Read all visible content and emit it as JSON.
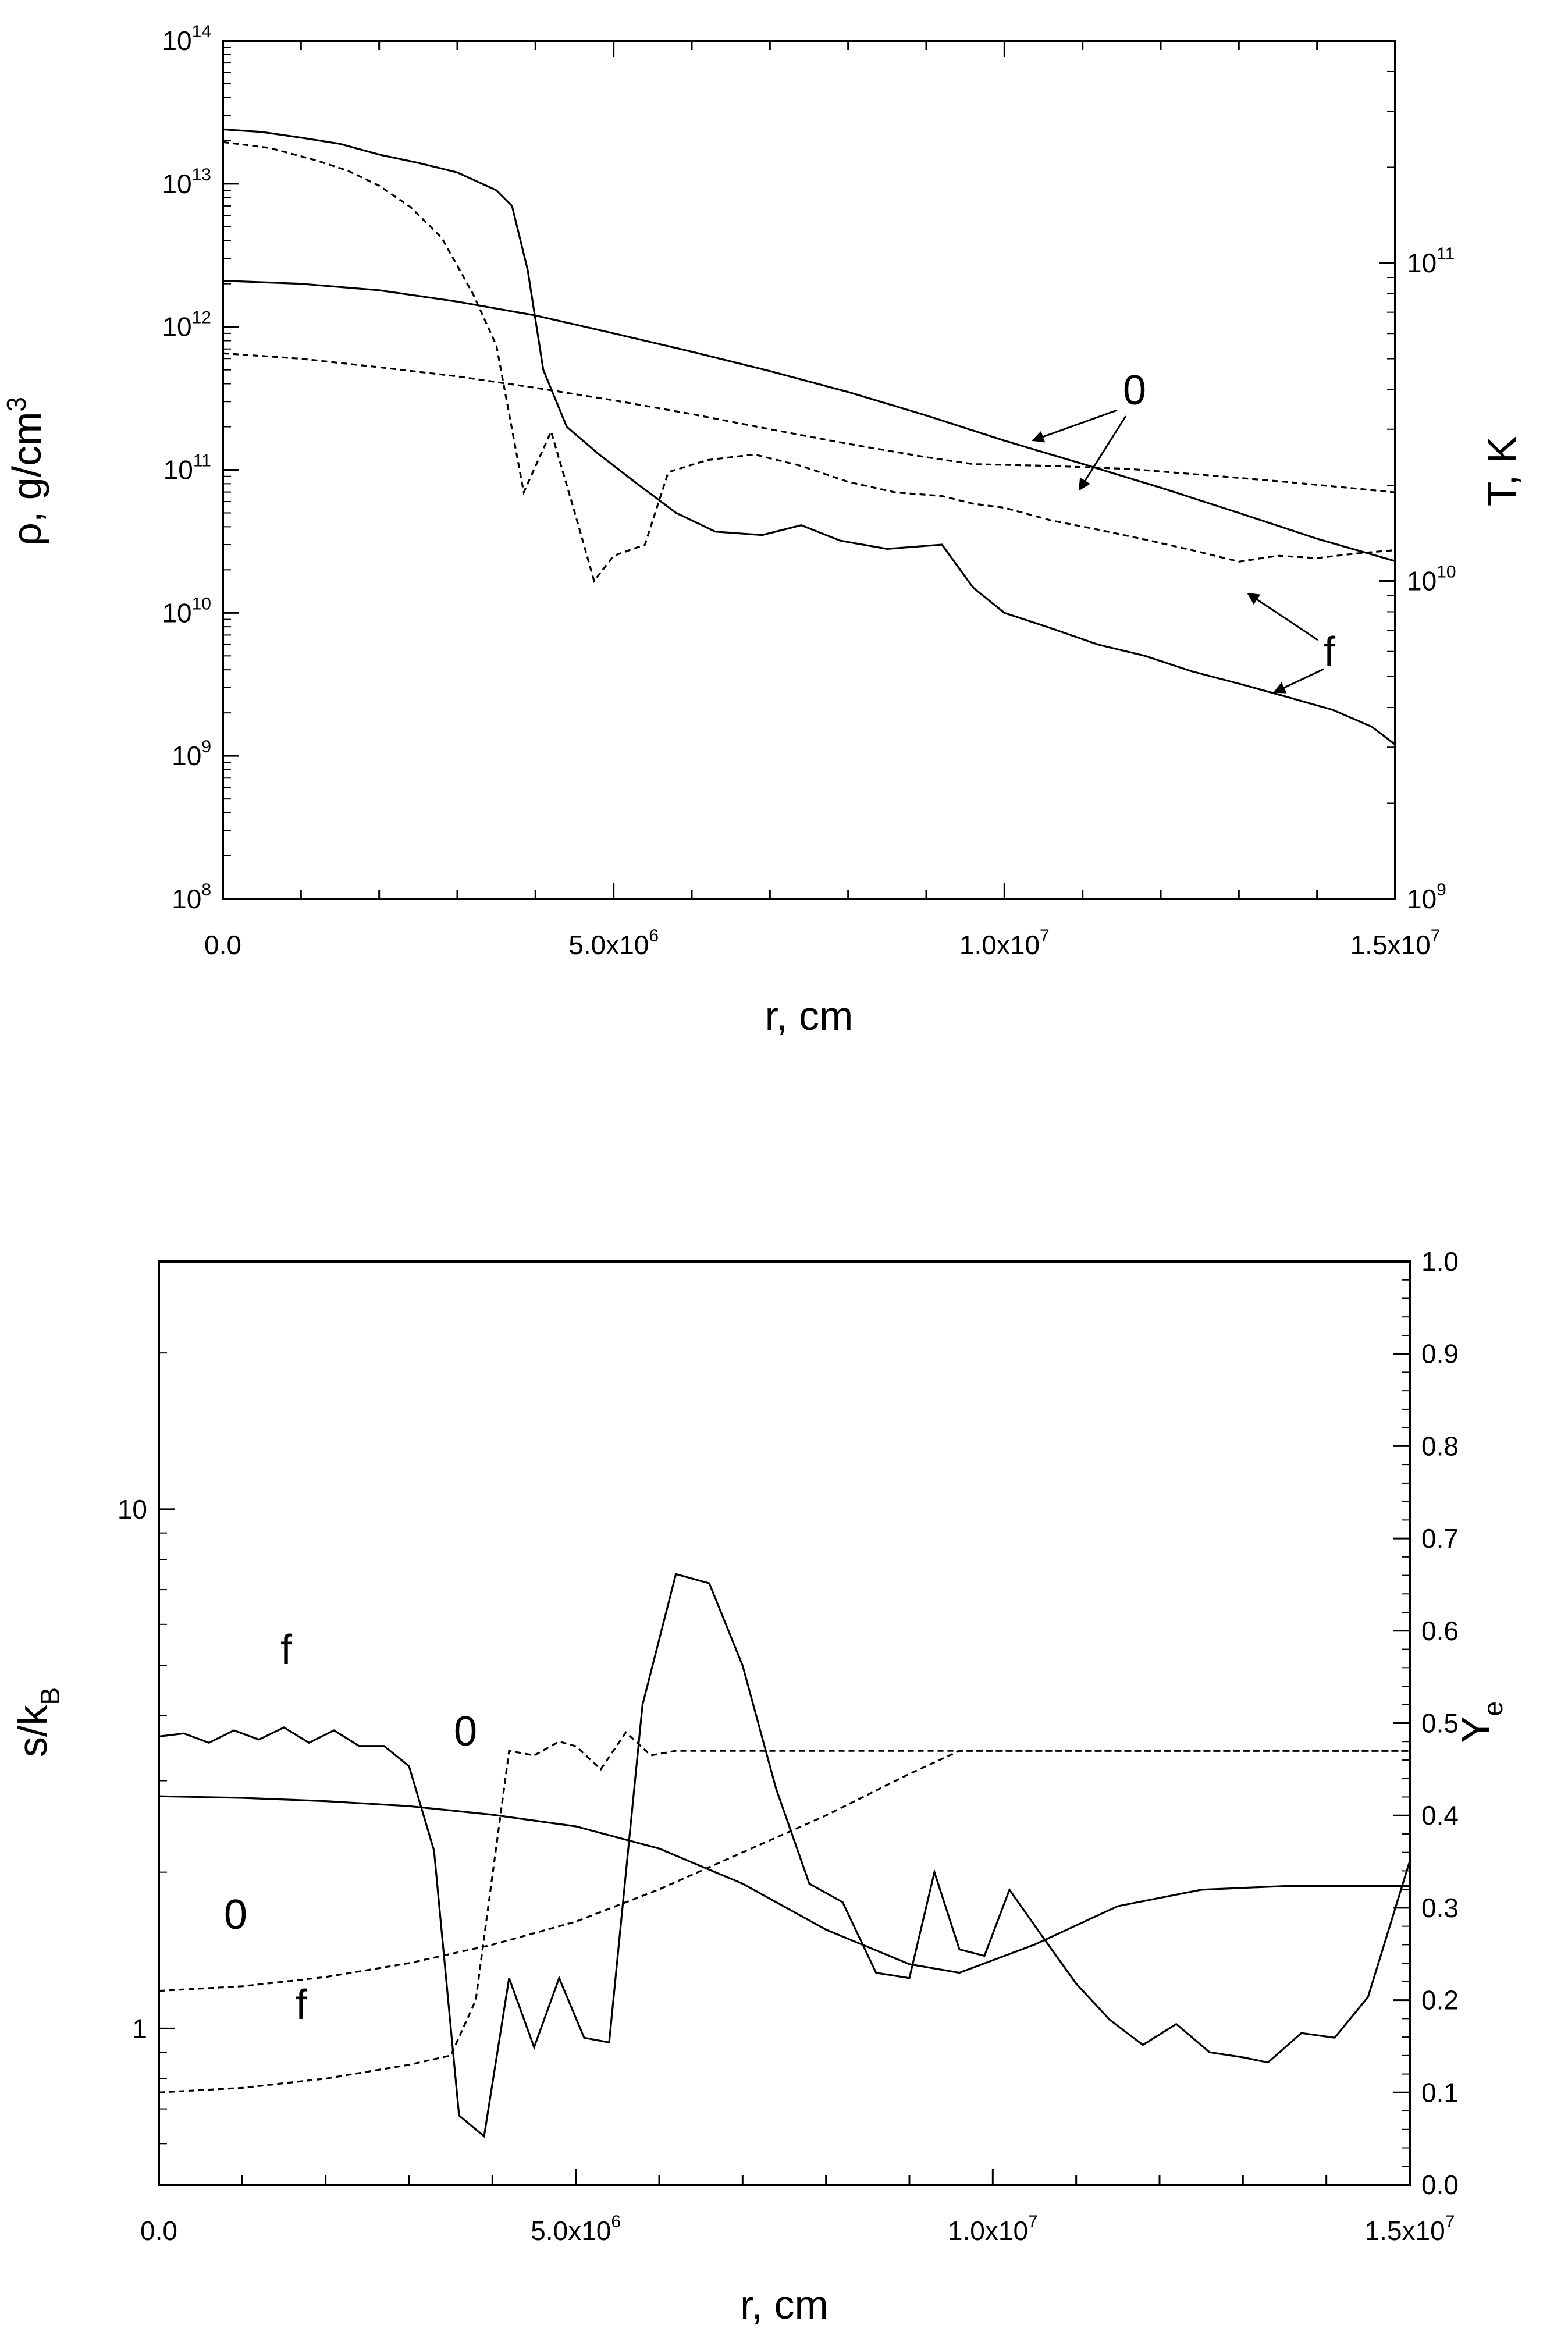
{
  "chart_data": [
    {
      "type": "line",
      "panel": "top",
      "xlabel": "r, cm",
      "ylabel_left": "ρ, g/cm3",
      "ylabel_right": "T, K",
      "xlim": [
        0,
        15000000
      ],
      "ylim_left": [
        100000000,
        100000000000000
      ],
      "ylim_right": [
        1000000000,
        500000000000
      ],
      "yscale": "log",
      "x_ticks": [
        {
          "value": 0,
          "mantissa": "0.0",
          "exp": ""
        },
        {
          "value": 5000000,
          "mantissa": "5.0x10",
          "exp": "6"
        },
        {
          "value": 10000000,
          "mantissa": "1.0x10",
          "exp": "7"
        },
        {
          "value": 15000000,
          "mantissa": "1.5x10",
          "exp": "7"
        }
      ],
      "y_left_ticks": [
        {
          "value": 100000000,
          "base": "10",
          "exp": "8"
        },
        {
          "value": 1000000000,
          "base": "10",
          "exp": "9"
        },
        {
          "value": 10000000000,
          "base": "10",
          "exp": "10"
        },
        {
          "value": 100000000000,
          "base": "10",
          "exp": "11"
        },
        {
          "value": 1000000000000,
          "base": "10",
          "exp": "12"
        },
        {
          "value": 10000000000000,
          "base": "10",
          "exp": "13"
        },
        {
          "value": 100000000000000,
          "base": "10",
          "exp": "14"
        }
      ],
      "y_right_ticks": [
        {
          "value": 1000000000,
          "base": "10",
          "exp": "9"
        },
        {
          "value": 10000000000,
          "base": "10",
          "exp": "10"
        },
        {
          "value": 100000000000,
          "base": "10",
          "exp": "11"
        }
      ],
      "series": [
        {
          "name": "rho_f",
          "axis": "left",
          "style": "solid",
          "x": [
            0,
            500000.0,
            1000000.0,
            1500000.0,
            2000000.0,
            2500000.0,
            3000000.0,
            3500000.0,
            3700000.0,
            3900000.0,
            4100000.0,
            4400000.0,
            4800000.0,
            5300000.0,
            5800000.0,
            6300000.0,
            6900000.0,
            7400000.0,
            7900000.0,
            8500000.0,
            9200000.0,
            9600000.0,
            10000000.0,
            10600000.0,
            11200000.0,
            11800000.0,
            12400000.0,
            13000000.0,
            13600000.0,
            14200000.0,
            14700000.0,
            15000000.0
          ],
          "y": [
            24000000000000.0,
            23000000000000.0,
            21000000000000.0,
            19000000000000.0,
            16000000000000.0,
            14000000000000.0,
            12000000000000.0,
            9000000000000.0,
            7000000000000.0,
            2500000000000.0,
            500000000000.0,
            200000000000.0,
            130000000000.0,
            80000000000.0,
            50000000000.0,
            37000000000.0,
            35000000000.0,
            41000000000.0,
            32000000000.0,
            28000000000.0,
            30000000000.0,
            15000000000.0,
            10000000000.0,
            7800000000.0,
            6000000000.0,
            5000000000.0,
            3900000000.0,
            3200000000.0,
            2600000000.0,
            2100000000.0,
            1600000000.0,
            1200000000.0
          ]
        },
        {
          "name": "rho_0",
          "axis": "left",
          "style": "solid",
          "x": [
            0,
            1000000.0,
            2000000.0,
            3000000.0,
            4000000.0,
            5000000.0,
            6000000.0,
            7000000.0,
            8000000.0,
            9000000.0,
            10000000.0,
            11000000.0,
            12000000.0,
            13000000.0,
            14000000.0,
            15000000.0
          ],
          "y": [
            2100000000000.0,
            2000000000000.0,
            1800000000000.0,
            1500000000000.0,
            1200000000000.0,
            900000000000.0,
            670000000000.0,
            490000000000.0,
            350000000000.0,
            240000000000.0,
            160000000000.0,
            110000000000.0,
            75000000000.0,
            50000000000.0,
            33000000000.0,
            23000000000.0
          ]
        },
        {
          "name": "T_f",
          "axis": "right",
          "style": "dashed",
          "x": [
            0,
            600000.0,
            1200000.0,
            1600000.0,
            2000000.0,
            2400000.0,
            2800000.0,
            3200000.0,
            3500000.0,
            3850000.0,
            4200000.0,
            4500000.0,
            4750000.0,
            5000000.0,
            5400000.0,
            5700000.0,
            6200000.0,
            6800000.0,
            7400000.0,
            8000000.0,
            8600000.0,
            9200000.0,
            9600000.0,
            10000000.0,
            10600000.0,
            11200000.0,
            11800000.0,
            12400000.0,
            13000000.0,
            13500000.0,
            14000000.0,
            14500000.0,
            15000000.0
          ],
          "y": [
            240000000000.0,
            230000000000.0,
            210000000000.0,
            195000000000.0,
            175000000000.0,
            150000000000.0,
            120000000000.0,
            80000000000.0,
            55000000000.0,
            19000000000.0,
            29500000000.0,
            16500000000.0,
            10000000000.0,
            12000000000.0,
            13000000000.0,
            22000000000.0,
            24000000000.0,
            25000000000.0,
            23000000000.0,
            20500000000.0,
            19000000000.0,
            18500000000.0,
            17500000000.0,
            17000000000.0,
            15500000000.0,
            14500000000.0,
            13500000000.0,
            12500000000.0,
            11500000000.0,
            12000000000.0,
            11800000000.0,
            12200000000.0,
            12500000000.0
          ]
        },
        {
          "name": "T_0",
          "axis": "right",
          "style": "dashed",
          "x": [
            0,
            1000000.0,
            2000000.0,
            3000000.0,
            4000000.0,
            5000000.0,
            6000000.0,
            7000000.0,
            8000000.0,
            9000000.0,
            9600000.0,
            10600000.0,
            11600000.0,
            12600000.0,
            13600000.0,
            15000000.0
          ],
          "y": [
            52000000000.0,
            50000000000.0,
            47000000000.0,
            44000000000.0,
            40500000000.0,
            37000000000.0,
            33500000000.0,
            30000000000.0,
            27000000000.0,
            24500000000.0,
            23300000000.0,
            23000000000.0,
            22500000000.0,
            21500000000.0,
            20500000000.0,
            19000000000.0
          ]
        }
      ],
      "annotations": [
        {
          "text": "0"
        },
        {
          "text": "f"
        }
      ]
    },
    {
      "type": "line",
      "panel": "bottom",
      "xlabel": "r, cm",
      "ylabel_left": "s/kB",
      "ylabel_right": "Ye",
      "xlim": [
        0,
        15000000
      ],
      "ylim_left": [
        0.5,
        30
      ],
      "ylim_right": [
        0.0,
        1.0
      ],
      "yscale_left": "log",
      "x_ticks": [
        {
          "value": 0,
          "mantissa": "0.0",
          "exp": ""
        },
        {
          "value": 5000000,
          "mantissa": "5.0x10",
          "exp": "6"
        },
        {
          "value": 10000000,
          "mantissa": "1.0x10",
          "exp": "7"
        },
        {
          "value": 15000000,
          "mantissa": "1.5x10",
          "exp": "7"
        }
      ],
      "y_left_ticks": [
        "1",
        "10"
      ],
      "y_right_ticks": [
        "0.0",
        "0.1",
        "0.2",
        "0.3",
        "0.4",
        "0.5",
        "0.6",
        "0.7",
        "0.8",
        "0.9",
        "1.0"
      ],
      "series": [
        {
          "name": "s_f",
          "axis": "left",
          "style": "solid",
          "x": [
            0,
            300000.0,
            600000.0,
            900000.0,
            1200000.0,
            1500000.0,
            1800000.0,
            2100000.0,
            2400000.0,
            2700000.0,
            3000000.0,
            3300000.0,
            3600000.0,
            3900000.0,
            4200000.0,
            4500000.0,
            4800000.0,
            5100000.0,
            5400000.0,
            5800000.0,
            6200000.0,
            6600000.0,
            7000000.0,
            7400000.0,
            7800000.0,
            8200000.0,
            8600000.0,
            9000000.0,
            9300000.0,
            9600000.0,
            9900000.0,
            10200000.0,
            10600000.0,
            11000000.0,
            11400000.0,
            11800000.0,
            12200000.0,
            12600000.0,
            13000000.0,
            13300000.0,
            13700000.0,
            14100000.0,
            14500000.0,
            15000000.0
          ],
          "y": [
            3.65,
            3.7,
            3.55,
            3.75,
            3.6,
            3.8,
            3.55,
            3.75,
            3.5,
            3.5,
            3.2,
            2.2,
            0.68,
            0.62,
            1.25,
            0.92,
            1.25,
            0.96,
            0.94,
            4.2,
            7.5,
            7.2,
            5.0,
            2.9,
            1.9,
            1.75,
            1.28,
            1.25,
            2.0,
            1.42,
            1.38,
            1.85,
            1.5,
            1.22,
            1.04,
            0.93,
            1.02,
            0.9,
            0.88,
            0.86,
            0.98,
            0.96,
            1.15,
            2.1
          ]
        },
        {
          "name": "s_0",
          "axis": "left",
          "style": "solid",
          "x": [
            0,
            1000000.0,
            2000000.0,
            3000000.0,
            4000000.0,
            5000000.0,
            6000000.0,
            7000000.0,
            8000000.0,
            9000000.0,
            9600000.0,
            10500000.0,
            11500000.0,
            12500000.0,
            13500000.0,
            15000000.0
          ],
          "y": [
            2.8,
            2.78,
            2.74,
            2.68,
            2.58,
            2.45,
            2.22,
            1.9,
            1.55,
            1.33,
            1.28,
            1.45,
            1.72,
            1.85,
            1.88,
            1.88
          ]
        },
        {
          "name": "Ye_0",
          "axis": "right",
          "style": "dashed",
          "x": [
            0,
            1000000.0,
            2000000.0,
            3000000.0,
            4000000.0,
            5000000.0,
            6000000.0,
            7000000.0,
            8000000.0,
            9000000.0,
            9600000.0,
            10500000.0,
            12000000.0,
            15000000.0
          ],
          "y": [
            0.21,
            0.215,
            0.225,
            0.24,
            0.26,
            0.285,
            0.32,
            0.36,
            0.4,
            0.445,
            0.47,
            0.47,
            0.47,
            0.47
          ]
        },
        {
          "name": "Ye_f",
          "axis": "right",
          "style": "dashed",
          "x": [
            0,
            1000000.0,
            2000000.0,
            3000000.0,
            3500000.0,
            3800000.0,
            4200000.0,
            4500000.0,
            4800000.0,
            5000000.0,
            5300000.0,
            5600000.0,
            5900000.0,
            6200000.0,
            7000000.0,
            8000000.0,
            9000000.0,
            10000000.0,
            12000000.0,
            15000000.0
          ],
          "y": [
            0.1,
            0.105,
            0.115,
            0.13,
            0.14,
            0.2,
            0.47,
            0.465,
            0.48,
            0.475,
            0.45,
            0.49,
            0.465,
            0.47,
            0.47,
            0.47,
            0.47,
            0.47,
            0.47,
            0.47
          ]
        }
      ],
      "annotations": [
        {
          "text": "f"
        },
        {
          "text": "0"
        },
        {
          "text": "0"
        },
        {
          "text": "f"
        }
      ]
    }
  ]
}
